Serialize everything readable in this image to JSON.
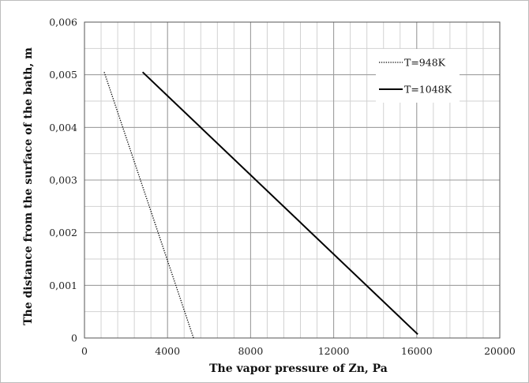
{
  "chart_data": {
    "type": "line",
    "title": "",
    "xlabel": "The vapor pressure  of Zn, Pa",
    "ylabel": "The distance from the surface of the bath, m",
    "xlim": [
      0,
      20000
    ],
    "ylim": [
      0,
      0.006
    ],
    "x_major_ticks": [
      0,
      4000,
      8000,
      12000,
      16000,
      20000
    ],
    "x_tick_labels": [
      "0",
      "4000",
      "8000",
      "12000",
      "16000",
      "20000"
    ],
    "y_major_ticks": [
      0,
      0.001,
      0.002,
      0.003,
      0.004,
      0.005,
      0.006
    ],
    "y_tick_labels": [
      "0",
      "0,001",
      "0,002",
      "0,003",
      "0,004",
      "0,005",
      "0,006"
    ],
    "x_minor_step": 800,
    "y_minor_step": 0.0005,
    "grid": true,
    "legend_position": "top-right",
    "series": [
      {
        "name": "T=948K",
        "style": "dotted",
        "color": "#000000",
        "points": [
          [
            950,
            0.00505
          ],
          [
            5250,
            0.0
          ]
        ]
      },
      {
        "name": "T=1048K",
        "style": "solid",
        "color": "#000000",
        "points": [
          [
            2800,
            0.00505
          ],
          [
            16050,
            7e-05
          ]
        ]
      }
    ]
  }
}
